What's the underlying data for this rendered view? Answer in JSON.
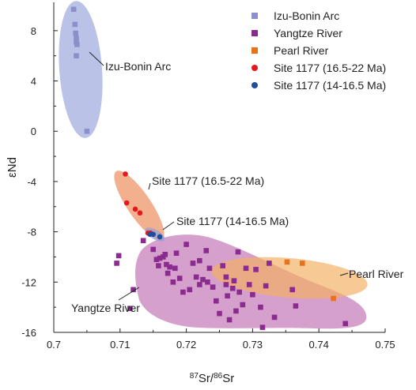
{
  "chart_data": {
    "type": "scatter",
    "xlabel": "87Sr/86Sr",
    "ylabel": "εNd",
    "xlim": [
      0.7,
      0.75
    ],
    "ylim": [
      -16,
      10
    ],
    "x_ticks": [
      "0.7",
      "0.71",
      "0.72",
      "0.73",
      "0.74",
      "0.75"
    ],
    "y_ticks": [
      "8",
      "4",
      "0",
      "-4",
      "-8",
      "-12",
      "-16"
    ],
    "legend_position": "top-right",
    "grid": false,
    "series": [
      {
        "name": "Izu-Bonin Arc",
        "marker": "square",
        "color": "#8c8fc9",
        "points": [
          [
            0.703,
            9.7
          ],
          [
            0.7032,
            8.5
          ],
          [
            0.7033,
            7.8
          ],
          [
            0.7034,
            7.4
          ],
          [
            0.7034,
            7.1
          ],
          [
            0.7035,
            6.9
          ],
          [
            0.7034,
            6.0
          ],
          [
            0.705,
            0.0
          ]
        ]
      },
      {
        "name": "Yangtze River",
        "marker": "square",
        "color": "#8b2a8f",
        "points": [
          [
            0.7135,
            -8.7
          ],
          [
            0.715,
            -9.4
          ],
          [
            0.7155,
            -10.2
          ],
          [
            0.7158,
            -10.7
          ],
          [
            0.716,
            -10.1
          ],
          [
            0.7165,
            -10.0
          ],
          [
            0.7168,
            -9.8
          ],
          [
            0.717,
            -10.6
          ],
          [
            0.7172,
            -11.3
          ],
          [
            0.7175,
            -10.8
          ],
          [
            0.718,
            -12.0
          ],
          [
            0.7183,
            -10.9
          ],
          [
            0.7185,
            -9.7
          ],
          [
            0.719,
            -11.7
          ],
          [
            0.7195,
            -12.8
          ],
          [
            0.72,
            -9.0
          ],
          [
            0.7205,
            -12.6
          ],
          [
            0.721,
            -10.5
          ],
          [
            0.7215,
            -11.6
          ],
          [
            0.722,
            -12.2
          ],
          [
            0.722,
            -10.3
          ],
          [
            0.7225,
            -11.8
          ],
          [
            0.723,
            -9.5
          ],
          [
            0.7232,
            -12.0
          ],
          [
            0.7235,
            -10.9
          ],
          [
            0.724,
            -12.4
          ],
          [
            0.7245,
            -13.5
          ],
          [
            0.725,
            -14.5
          ],
          [
            0.7255,
            -10.7
          ],
          [
            0.726,
            -11.6
          ],
          [
            0.7262,
            -13.1
          ],
          [
            0.7265,
            -15.0
          ],
          [
            0.727,
            -12.5
          ],
          [
            0.7272,
            -11.9
          ],
          [
            0.7275,
            -14.3
          ],
          [
            0.7278,
            -9.6
          ],
          [
            0.728,
            -12.8
          ],
          [
            0.7285,
            -13.8
          ],
          [
            0.729,
            -10.9
          ],
          [
            0.7295,
            -12.2
          ],
          [
            0.73,
            -13.0
          ],
          [
            0.7305,
            -11.0
          ],
          [
            0.7312,
            -14.0
          ],
          [
            0.7315,
            -15.6
          ],
          [
            0.732,
            -12.3
          ],
          [
            0.7325,
            -10.5
          ],
          [
            0.7333,
            -14.8
          ],
          [
            0.736,
            -12.6
          ],
          [
            0.7365,
            -13.9
          ],
          [
            0.744,
            -15.3
          ],
          [
            0.7095,
            -10.5
          ],
          [
            0.7098,
            -9.9
          ],
          [
            0.712,
            -12.6
          ],
          [
            0.7115,
            -14.1
          ],
          [
            0.726,
            -12.2
          ]
        ]
      },
      {
        "name": "Pearl River",
        "marker": "square",
        "color": "#e8711c",
        "points": [
          [
            0.7352,
            -10.4
          ],
          [
            0.7375,
            -10.5
          ],
          [
            0.7422,
            -13.3
          ]
        ]
      },
      {
        "name": "Site 1177 (16.5-22 Ma)",
        "marker": "circle",
        "color": "#e3191c",
        "points": [
          [
            0.7108,
            -3.4
          ],
          [
            0.711,
            -5.7
          ],
          [
            0.7123,
            -6.2
          ],
          [
            0.713,
            -6.5
          ],
          [
            0.7142,
            -8.1
          ],
          [
            0.7146,
            -8.1
          ]
        ]
      },
      {
        "name": "Site 1177 (14-16.5 Ma)",
        "marker": "circle",
        "color": "#1f4e9c",
        "points": [
          [
            0.7145,
            -8.2
          ],
          [
            0.715,
            -8.2
          ],
          [
            0.716,
            -8.4
          ]
        ]
      }
    ],
    "regions": [
      {
        "label": "Izu-Bonin Arc",
        "color": "#9aa7dc"
      },
      {
        "label": "Site 1177 (16.5-22 Ma)",
        "color": "#ec8a59"
      },
      {
        "label": "Site 1177 (14-16.5 Ma)",
        "color": "#8d9fd9"
      },
      {
        "label": "Yangtze River",
        "color": "#c67cba"
      },
      {
        "label": "Pearl River",
        "color": "#f3b062"
      }
    ]
  }
}
